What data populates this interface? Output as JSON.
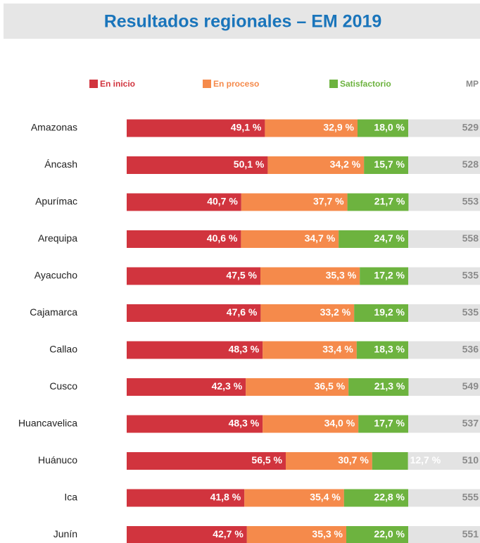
{
  "chart_data": {
    "type": "stacked-bar",
    "title": "Resultados regionales – EM 2019",
    "categories": [
      "Amazonas",
      "Áncash",
      "Apurímac",
      "Arequipa",
      "Ayacucho",
      "Cajamarca",
      "Callao",
      "Cusco",
      "Huancavelica",
      "Huánuco",
      "Ica",
      "Junín"
    ],
    "series": [
      {
        "name": "En inicio",
        "color": "#d1343e",
        "values": [
          49.1,
          50.1,
          40.7,
          40.6,
          47.5,
          47.6,
          48.3,
          42.3,
          48.3,
          56.5,
          41.8,
          42.7
        ],
        "value_labels": [
          "49,1 %",
          "50,1 %",
          "40,7 %",
          "40,6 %",
          "47,5 %",
          "47,6 %",
          "48,3 %",
          "42,3 %",
          "48,3 %",
          "56,5 %",
          "41,8 %",
          "42,7 %"
        ]
      },
      {
        "name": "En proceso",
        "color": "#f58a4b",
        "values": [
          32.9,
          34.2,
          37.7,
          34.7,
          35.3,
          33.2,
          33.4,
          36.5,
          34.0,
          30.7,
          35.4,
          35.3
        ],
        "value_labels": [
          "32,9 %",
          "34,2 %",
          "37,7 %",
          "34,7 %",
          "35,3 %",
          "33,2 %",
          "33,4 %",
          "36,5 %",
          "34,0 %",
          "30,7 %",
          "35,4 %",
          "35,3 %"
        ]
      },
      {
        "name": "Satisfactorio",
        "color": "#6db33f",
        "values": [
          18.0,
          15.7,
          21.7,
          24.7,
          17.2,
          19.2,
          18.3,
          21.3,
          17.7,
          12.7,
          22.8,
          22.0
        ],
        "value_labels": [
          "18,0 %",
          "15,7 %",
          "21,7 %",
          "24,7 %",
          "17,2 %",
          "19,2 %",
          "18,3 %",
          "21,3 %",
          "17,7 %",
          "12,7 %",
          "22,8 %",
          "22,0 %"
        ]
      }
    ],
    "mp": {
      "name": "MP",
      "values": [
        529,
        528,
        553,
        558,
        535,
        535,
        536,
        549,
        537,
        510,
        555,
        551
      ]
    }
  }
}
